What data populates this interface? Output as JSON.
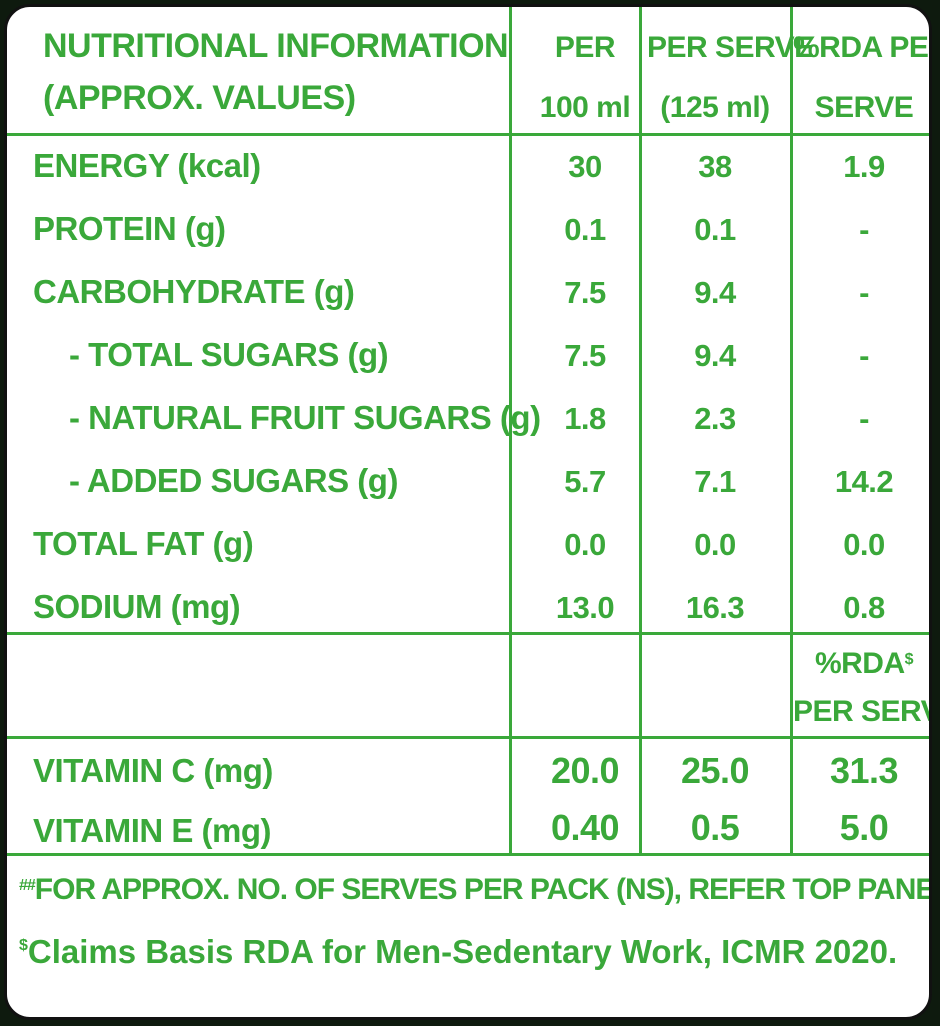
{
  "header": {
    "title_line1": "NUTRITIONAL INFORMATION",
    "title_line2": "(APPROX. VALUES)",
    "col1_line1": "PER",
    "col1_line2": "100 ml",
    "col2_line1": "PER SERVE",
    "col2_line2": "(125 ml)",
    "col3_line1": "%RDA PER",
    "col3_line2": "SERVE"
  },
  "rows": [
    {
      "label": "ENERGY (kcal)",
      "per100": "30",
      "perServe": "38",
      "rda": "1.9"
    },
    {
      "label": "PROTEIN (g)",
      "per100": "0.1",
      "perServe": "0.1",
      "rda": "-"
    },
    {
      "label": "CARBOHYDRATE (g)",
      "per100": "7.5",
      "perServe": "9.4",
      "rda": "-"
    },
    {
      "label": "- TOTAL SUGARS (g)",
      "per100": "7.5",
      "perServe": "9.4",
      "rda": "-"
    },
    {
      "label": "- NATURAL FRUIT SUGARS (g)",
      "per100": "1.8",
      "perServe": "2.3",
      "rda": "-"
    },
    {
      "label": "- ADDED SUGARS (g)",
      "per100": "5.7",
      "perServe": "7.1",
      "rda": "14.2"
    },
    {
      "label": "TOTAL FAT (g)",
      "per100": "0.0",
      "perServe": "0.0",
      "rda": "0.0"
    },
    {
      "label": "SODIUM (mg)",
      "per100": "13.0",
      "perServe": "16.3",
      "rda": "0.8"
    }
  ],
  "vitamin_header": {
    "rda_line1": "%RDA",
    "rda_mark": "$",
    "rda_line2": "PER SERVE"
  },
  "vitamins": [
    {
      "label": "VITAMIN C (mg)",
      "per100": "20.0",
      "perServe": "25.0",
      "rda": "31.3"
    },
    {
      "label": "VITAMIN E (mg)",
      "per100": "0.40",
      "perServe": "0.5",
      "rda": "5.0"
    }
  ],
  "footnotes": {
    "note1_mark": "##",
    "note1": "FOR APPROX. NO. OF SERVES PER PACK (NS), REFER TOP PANEL.",
    "note2_mark": "$",
    "note2": "Claims Basis RDA for Men-Sedentary Work, ICMR 2020."
  },
  "colors": {
    "text": "#3aa83a",
    "rules": "#3aa83a",
    "background": "#ffffff",
    "frame": "#111111"
  }
}
